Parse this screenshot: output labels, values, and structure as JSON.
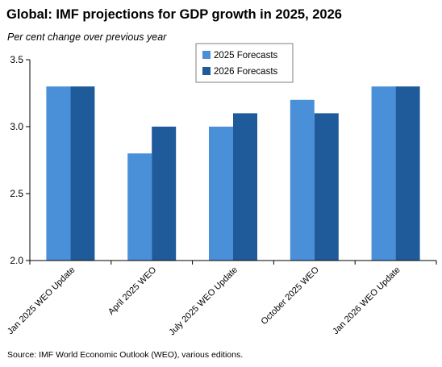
{
  "title": "Global: IMF projections for GDP growth in 2025, 2026",
  "subtitle": "Per cent change over previous year",
  "source": "Source: IMF World Economic Outlook (WEO), various editions.",
  "colors": {
    "series_2025": "#4A90D9",
    "series_2026": "#1F5B9A",
    "axis": "#000000"
  },
  "chart_data": {
    "type": "bar",
    "categories": [
      "Jan 2025 WEO Update",
      "April 2025 WEO",
      "July 2025 WEO Update",
      "October 2025 WEO",
      "Jan 2026 WEO Update"
    ],
    "series": [
      {
        "name": "2025 Forecasts",
        "values": [
          3.3,
          2.8,
          3.0,
          3.2,
          3.3
        ]
      },
      {
        "name": "2026 Forecasts",
        "values": [
          3.3,
          3.0,
          3.1,
          3.1,
          3.3
        ]
      }
    ],
    "yticks": [
      "2.0",
      "2.5",
      "3.0",
      "3.5"
    ],
    "ylim": [
      2.0,
      3.5
    ],
    "grid": false,
    "legend_position": "top-right"
  }
}
